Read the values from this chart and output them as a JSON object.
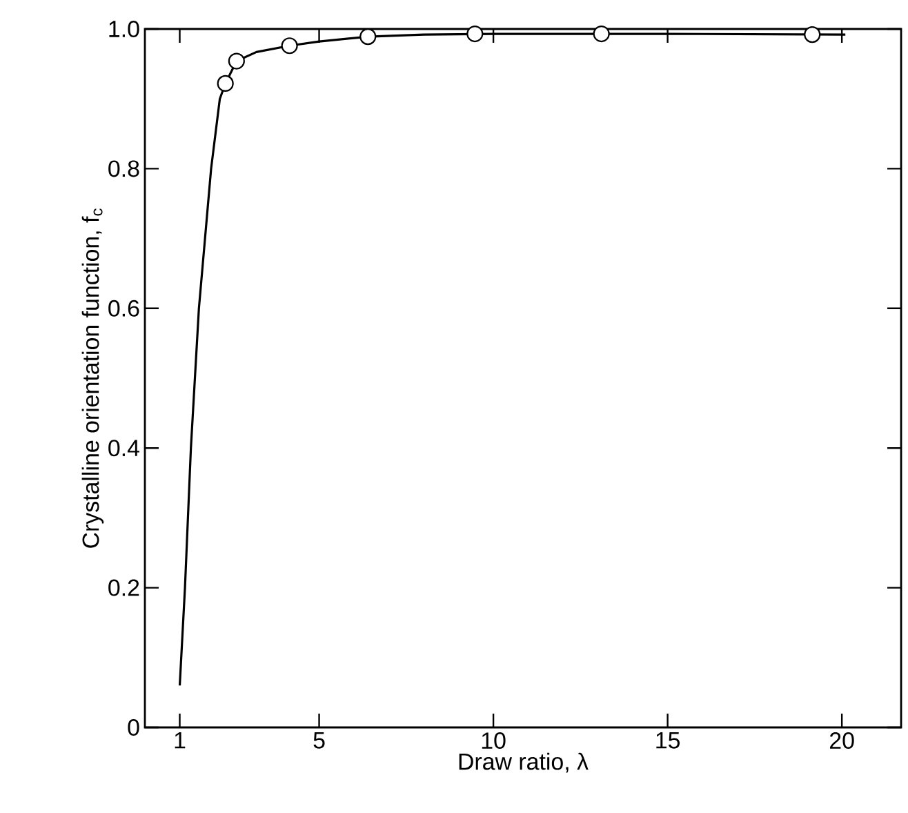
{
  "chart_data": {
    "type": "scatter",
    "xlabel": "Draw ratio, λ",
    "ylabel": "Crystalline orientation function, f$_{c}$",
    "xlim": [
      0,
      21.7
    ],
    "ylim": [
      0,
      1.0
    ],
    "xticks": [
      1,
      5,
      10,
      15,
      20
    ],
    "yticks": [
      0,
      {
        "value": 0.2,
        "label": "0.2"
      },
      {
        "value": 0.4,
        "label": "0.4"
      },
      {
        "value": 0.6,
        "label": "0.6"
      },
      {
        "value": 0.8,
        "label": "0.8"
      },
      {
        "value": 1.0,
        "label": "1.0"
      }
    ],
    "series": [
      {
        "marker": "circle",
        "color": "#000000",
        "x": [
          2.31,
          2.63,
          4.15,
          6.4,
          9.47,
          13.1,
          19.15
        ],
        "values": [
          0.922,
          0.954,
          0.976,
          0.989,
          0.993,
          0.993,
          0.992
        ]
      },
      {
        "type": "line",
        "marker": "none",
        "line_style": "solid",
        "color": "#000000",
        "x": [
          1,
          1.15,
          1.32,
          1.55,
          1.9,
          2.15,
          2.31,
          2.63,
          3.2,
          4.15,
          5,
          6.4,
          8,
          10,
          15,
          20.1
        ],
        "values": [
          0.06,
          0.2,
          0.4,
          0.6,
          0.8,
          0.9,
          0.922,
          0.954,
          0.967,
          0.976,
          0.982,
          0.989,
          0.992,
          0.993,
          0.993,
          0.992
        ]
      }
    ]
  }
}
